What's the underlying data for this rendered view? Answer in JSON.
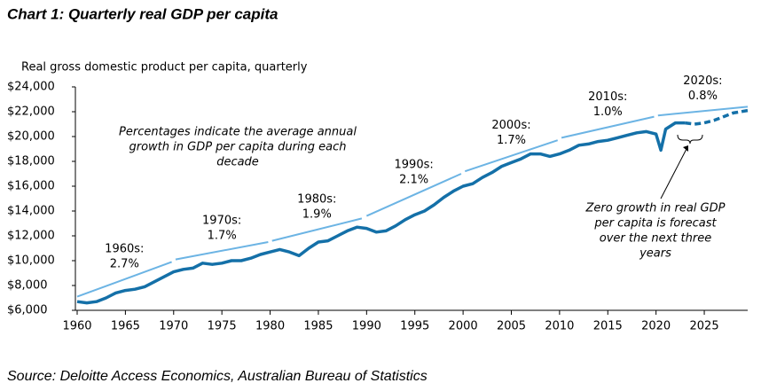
{
  "chart_data": {
    "type": "line",
    "title": "Chart 1: Quarterly real GDP per capita",
    "y_axis_label": "Real gross domestic product per capita, quarterly",
    "source": "Source: Deloitte Access Economics, Australian Bureau of Statistics",
    "xlim": [
      1960,
      2029.5
    ],
    "xticks": [
      1960,
      1965,
      1970,
      1975,
      1980,
      1985,
      1990,
      1995,
      2000,
      2005,
      2010,
      2015,
      2020,
      2025
    ],
    "ylim": [
      6000,
      24000
    ],
    "yticks": [
      {
        "value": 6000,
        "label": "$6,000"
      },
      {
        "value": 8000,
        "label": "$8,000"
      },
      {
        "value": 10000,
        "label": "$10,000"
      },
      {
        "value": 12000,
        "label": "$12,000"
      },
      {
        "value": 14000,
        "label": "$14,000"
      },
      {
        "value": 16000,
        "label": "$16,000"
      },
      {
        "value": 18000,
        "label": "$18,000"
      },
      {
        "value": 20000,
        "label": "$20,000"
      },
      {
        "value": 22000,
        "label": "$22,000"
      },
      {
        "value": 24000,
        "label": "$24,000"
      }
    ],
    "series": [
      {
        "color": "#1470a8",
        "dashed": false,
        "x": [
          1960,
          1961,
          1962,
          1963,
          1964,
          1965,
          1966,
          1967,
          1968,
          1969,
          1970,
          1971,
          1972,
          1973,
          1974,
          1975,
          1976,
          1977,
          1978,
          1979,
          1980,
          1981,
          1982,
          1983,
          1984,
          1985,
          1986,
          1987,
          1988,
          1989,
          1990,
          1991,
          1992,
          1993,
          1994,
          1995,
          1996,
          1997,
          1998,
          1999,
          2000,
          2001,
          2002,
          2003,
          2004,
          2005,
          2006,
          2007,
          2008,
          2009,
          2010,
          2011,
          2012,
          2013,
          2014,
          2015,
          2016,
          2017,
          2018,
          2019,
          2020,
          2020.5,
          2021,
          2022,
          2023
        ],
        "values": [
          6700,
          6600,
          6700,
          7000,
          7400,
          7600,
          7700,
          7900,
          8300,
          8700,
          9100,
          9300,
          9400,
          9800,
          9700,
          9800,
          10000,
          10000,
          10200,
          10500,
          10700,
          10900,
          10700,
          10400,
          11000,
          11500,
          11600,
          12000,
          12400,
          12700,
          12600,
          12300,
          12400,
          12800,
          13300,
          13700,
          14000,
          14500,
          15100,
          15600,
          16000,
          16200,
          16700,
          17100,
          17600,
          17900,
          18200,
          18600,
          18600,
          18400,
          18600,
          18900,
          19300,
          19400,
          19600,
          19700,
          19900,
          20100,
          20300,
          20400,
          20200,
          18900,
          20600,
          21100,
          21100
        ]
      },
      {
        "color": "#1470a8",
        "dashed": true,
        "x": [
          2023,
          2024,
          2025,
          2026,
          2027,
          2028,
          2029.5
        ],
        "values": [
          21100,
          21000,
          21100,
          21300,
          21600,
          21900,
          22100
        ]
      }
    ],
    "trend_color": "#6cb4e4",
    "trends": [
      {
        "label": "1960s:",
        "rate": "2.7%",
        "x": [
          1960,
          1969.8
        ],
        "values": [
          7100,
          9900
        ]
      },
      {
        "label": "1970s:",
        "rate": "1.7%",
        "x": [
          1970.2,
          1979.8
        ],
        "values": [
          10100,
          11500
        ]
      },
      {
        "label": "1980s:",
        "rate": "1.9%",
        "x": [
          1980.2,
          1989.5
        ],
        "values": [
          11600,
          13400
        ]
      },
      {
        "label": "1990s:",
        "rate": "2.1%",
        "x": [
          1990,
          1999.8
        ],
        "values": [
          13600,
          17000
        ]
      },
      {
        "label": "2000s:",
        "rate": "1.7%",
        "x": [
          2000.2,
          2009.8
        ],
        "values": [
          17200,
          19700
        ]
      },
      {
        "label": "2010s:",
        "rate": "1.0%",
        "x": [
          2010.2,
          2019.8
        ],
        "values": [
          19900,
          21600
        ]
      },
      {
        "label": "2020s:",
        "rate": "0.8%",
        "x": [
          2020.2,
          2029.5
        ],
        "values": [
          21700,
          22400
        ]
      }
    ],
    "note_left": [
      "Percentages indicate the average annual",
      "growth in GDP per capita during each",
      "decade"
    ],
    "note_right": [
      "Zero growth in real GDP",
      "per capita is forecast",
      "over the next three",
      "years"
    ]
  }
}
